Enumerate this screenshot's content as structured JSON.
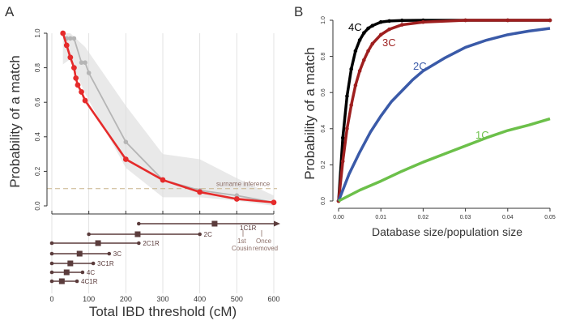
{
  "panel_labels": {
    "a": "A",
    "b": "B"
  },
  "colors": {
    "red": "#e52b2b",
    "gray_line": "#b5b5b5",
    "gray_band": "#e9e9e9",
    "dashed": "#c8b48c",
    "relation_line": "#5b3c3c",
    "relation_text": "#5b3c3c",
    "annot_text": "#8c6f68",
    "black_curve": "#000000",
    "dark_red_curve": "#9e1f1f",
    "blue_curve": "#3a5aa8",
    "green_curve": "#6cc04a"
  },
  "chart_data": [
    {
      "type": "line",
      "panel": "A",
      "xlabel": "Total IBD threshold (cM)",
      "ylabel": "Probability of a match",
      "xlim": [
        0,
        600
      ],
      "ylim": [
        0,
        1.0
      ],
      "xticks": [
        "0",
        "100",
        "200",
        "300",
        "400",
        "500",
        "600"
      ],
      "yticks": [
        "0.0",
        "0.2",
        "0.4",
        "0.6",
        "0.8",
        "1.0"
      ],
      "grid": "vertical lines at x ticks",
      "series": [
        {
          "color": "#e52b2b",
          "x": [
            30,
            40,
            50,
            60,
            65,
            70,
            80,
            90,
            200,
            300,
            400,
            500,
            600
          ],
          "y": [
            1.0,
            0.93,
            0.86,
            0.8,
            0.74,
            0.7,
            0.66,
            0.61,
            0.27,
            0.15,
            0.08,
            0.04,
            0.02
          ]
        },
        {
          "color": "#b5b5b5",
          "x": [
            40,
            50,
            60,
            80,
            90,
            100,
            200,
            300,
            400,
            500,
            600
          ],
          "y": [
            0.97,
            0.97,
            0.97,
            0.83,
            0.83,
            0.77,
            0.37,
            0.15,
            0.09,
            0.06,
            0.02
          ]
        }
      ],
      "band": {
        "x": [
          30,
          50,
          90,
          200,
          300,
          400,
          500,
          600
        ],
        "upper": [
          1.0,
          1.0,
          0.92,
          0.58,
          0.3,
          0.27,
          0.16,
          0.06
        ],
        "lower": [
          0.82,
          0.85,
          0.65,
          0.22,
          0.05,
          0.05,
          0.03,
          0.0
        ]
      },
      "reference_line": {
        "y": 0.1,
        "label": "surname inference"
      },
      "relations": [
        {
          "label": "1C1R",
          "start": 235,
          "end": 620,
          "mark": 440,
          "arrow": true
        },
        {
          "label": "2C",
          "start": 100,
          "end": 400,
          "mark": 232
        },
        {
          "label": "2C1R",
          "start": 0,
          "end": 235,
          "mark": 125
        },
        {
          "label": "3C",
          "start": 0,
          "end": 155,
          "mark": 75
        },
        {
          "label": "3C1R",
          "start": 0,
          "end": 112,
          "mark": 50
        },
        {
          "label": "4C",
          "start": 0,
          "end": 83,
          "mark": 40
        },
        {
          "label": "4C1R",
          "start": 0,
          "end": 68,
          "mark": 27
        }
      ],
      "relation_annotations": {
        "first": "1st",
        "cousin": "Cousin",
        "once": "Once",
        "removed": "removed"
      }
    },
    {
      "type": "line",
      "panel": "B",
      "xlabel": "Database size/population size",
      "ylabel": "Probability of a match",
      "xlim": [
        0,
        0.05
      ],
      "ylim": [
        0,
        1.0
      ],
      "xticks": [
        "0.00",
        "0.01",
        "0.02",
        "0.03",
        "0.04",
        "0.05"
      ],
      "yticks": [
        "0.0",
        "0.2",
        "0.4",
        "0.6",
        "0.8",
        "1.0"
      ],
      "grid": "off",
      "series": [
        {
          "name": "4C",
          "color": "#000000",
          "markers": true,
          "x": [
            0.0,
            0.001,
            0.002,
            0.003,
            0.004,
            0.005,
            0.006,
            0.007,
            0.008,
            0.01,
            0.012,
            0.015,
            0.02,
            0.03,
            0.04,
            0.05
          ],
          "y": [
            0.0,
            0.35,
            0.58,
            0.73,
            0.83,
            0.89,
            0.93,
            0.955,
            0.97,
            0.99,
            0.996,
            0.999,
            1.0,
            1.0,
            1.0,
            1.0
          ]
        },
        {
          "name": "3C",
          "color": "#9e1f1f",
          "markers": true,
          "x": [
            0.0,
            0.001,
            0.002,
            0.003,
            0.004,
            0.005,
            0.006,
            0.007,
            0.008,
            0.01,
            0.012,
            0.015,
            0.02,
            0.03,
            0.04,
            0.05
          ],
          "y": [
            0.0,
            0.22,
            0.4,
            0.53,
            0.64,
            0.72,
            0.78,
            0.83,
            0.87,
            0.92,
            0.95,
            0.975,
            0.99,
            1.0,
            1.0,
            1.0
          ]
        },
        {
          "name": "2C",
          "color": "#3a5aa8",
          "markers": false,
          "x": [
            0.0,
            0.0025,
            0.005,
            0.0075,
            0.01,
            0.0125,
            0.015,
            0.0175,
            0.02,
            0.025,
            0.03,
            0.035,
            0.04,
            0.045,
            0.05
          ],
          "y": [
            0.0,
            0.15,
            0.27,
            0.38,
            0.47,
            0.55,
            0.61,
            0.67,
            0.72,
            0.79,
            0.85,
            0.89,
            0.92,
            0.94,
            0.955
          ]
        },
        {
          "name": "1C",
          "color": "#6cc04a",
          "markers": false,
          "x": [
            0.0,
            0.005,
            0.01,
            0.015,
            0.02,
            0.025,
            0.03,
            0.035,
            0.04,
            0.045,
            0.05
          ],
          "y": [
            0.0,
            0.06,
            0.11,
            0.165,
            0.215,
            0.26,
            0.305,
            0.35,
            0.39,
            0.42,
            0.455
          ]
        }
      ]
    }
  ]
}
